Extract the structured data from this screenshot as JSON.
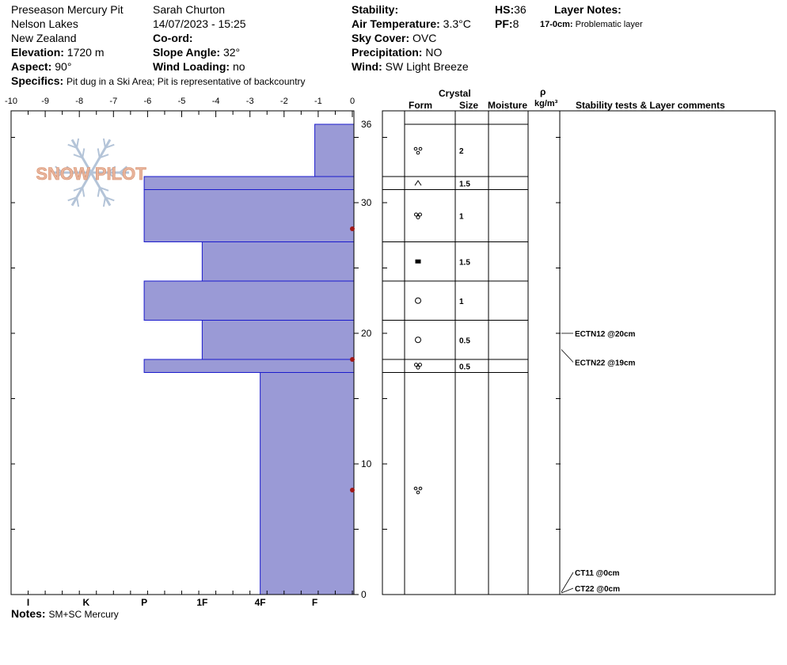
{
  "header": {
    "pit_name": "Preseason Mercury Pit",
    "location_1": "Nelson Lakes",
    "location_2": "New Zealand",
    "elevation_label": "Elevation:",
    "elevation_value": "1720 m",
    "aspect_label": "Aspect:",
    "aspect_value": "90°",
    "specifics_label": "Specifics:",
    "specifics_value": "Pit dug in a Ski Area; Pit is representative of backcountry",
    "observer": "Sarah Churton",
    "datetime": "14/07/2023 - 15:25",
    "coord_label": "Co-ord:",
    "slope_label": "Slope Angle:",
    "slope_value": "32°",
    "wind_loading_label": "Wind Loading:",
    "wind_loading_value": "no",
    "stability_label": "Stability:",
    "air_temp_label": "Air Temperature:",
    "air_temp_value": "3.3°C",
    "sky_label": "Sky Cover:",
    "sky_value": "OVC",
    "precip_label": "Precipitation:",
    "precip_value": "NO",
    "wind_label": "Wind:",
    "wind_value": "SW Light Breeze",
    "hs_label": "HS:",
    "hs_value": "36",
    "pf_label": "PF:",
    "pf_value": "8",
    "layer_notes_label": "Layer Notes:",
    "layer_note_range": "17-0cm:",
    "layer_note_text": "Problematic layer"
  },
  "notes_label": "Notes:",
  "notes_value": "SM+SC Mercury",
  "logo_text": "SNOW PILOT",
  "table_headers": {
    "crystal": "Crystal",
    "form": "Form",
    "size": "Size",
    "moisture": "Moisture",
    "rho": "ρ",
    "density_unit": "kg/m³",
    "comments": "Stability tests & Layer comments"
  },
  "colors": {
    "hardness_fill": "#9a9ad6",
    "hardness_stroke": "#1a1acc",
    "temp_point": "#a01818",
    "logo_flake": "#b4c4d8",
    "logo_text": "#e8b49c"
  },
  "chart_data": {
    "type": "snow_profile",
    "temperature_axis": {
      "range": [
        -10,
        0
      ],
      "ticks": [
        "-10",
        "-9",
        "-8",
        "-7",
        "-6",
        "-5",
        "-4",
        "-3",
        "-2",
        "-1",
        "0"
      ]
    },
    "height_axis": {
      "range": [
        0,
        36
      ],
      "ticks": [
        "36",
        "30",
        "20",
        "10",
        "0"
      ]
    },
    "hardness_scale": {
      "labels": [
        "I",
        "K",
        "P",
        "1F",
        "4F",
        "F"
      ],
      "label_temps": [
        -9.5,
        -7.8,
        -6.1,
        -4.4,
        -2.7,
        -1.1
      ]
    },
    "hardness_layers": [
      {
        "top": 36,
        "bottom": 32,
        "temp_extent": -1.1
      },
      {
        "top": 32,
        "bottom": 31,
        "temp_extent": -6.1
      },
      {
        "top": 31,
        "bottom": 27,
        "temp_extent": -6.1
      },
      {
        "top": 27,
        "bottom": 24,
        "temp_extent": -4.4
      },
      {
        "top": 24,
        "bottom": 21,
        "temp_extent": -6.1
      },
      {
        "top": 21,
        "bottom": 18,
        "temp_extent": -4.4
      },
      {
        "top": 18,
        "bottom": 17,
        "temp_extent": -6.1
      },
      {
        "top": 17,
        "bottom": 0,
        "temp_extent": -2.7
      }
    ],
    "temperature_points": [
      {
        "height": 28,
        "temp": 0
      },
      {
        "height": 18,
        "temp": 0
      },
      {
        "height": 8,
        "temp": 0
      }
    ],
    "layers": [
      {
        "top": 36,
        "bottom": 32,
        "form": "rounded-cluster",
        "size": "2"
      },
      {
        "top": 32,
        "bottom": 31,
        "form": "depth-hoar",
        "size": "1.5"
      },
      {
        "top": 31,
        "bottom": 27,
        "form": "melt-forms",
        "size": "1"
      },
      {
        "top": 27,
        "bottom": 24,
        "form": "faceted",
        "size": "1.5"
      },
      {
        "top": 24,
        "bottom": 21,
        "form": "rounded",
        "size": "1"
      },
      {
        "top": 21,
        "bottom": 18,
        "form": "rounded",
        "size": "0.5"
      },
      {
        "top": 18,
        "bottom": 17,
        "form": "melt-forms",
        "size": "0.5"
      },
      {
        "top": 17,
        "bottom": 0,
        "form": "rounded-cluster",
        "size": ""
      }
    ],
    "stability_tests": [
      {
        "height": 20,
        "label": "ECTN12 @20cm",
        "label_offset": 0
      },
      {
        "height": 19,
        "label": "ECTN22 @19cm",
        "label_offset": 1
      },
      {
        "height": 0,
        "label": "CT11 @0cm",
        "label_offset": -1
      },
      {
        "height": 0,
        "label": "CT22 @0cm",
        "label_offset": 0
      }
    ]
  }
}
